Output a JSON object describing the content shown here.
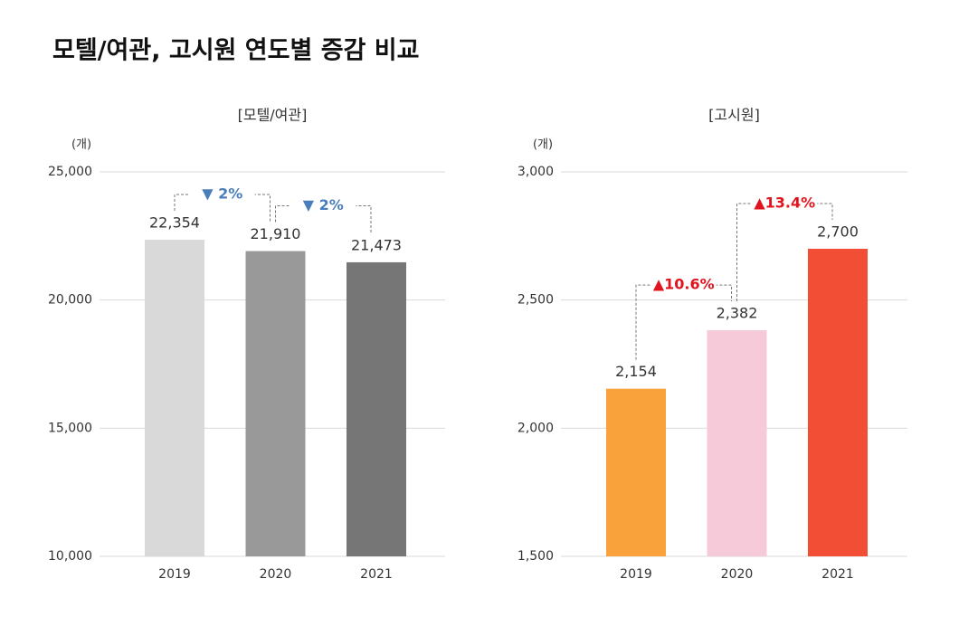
{
  "title": "모텔/여관, 고시원 연도별 증감 비교",
  "chart_data": [
    {
      "type": "bar",
      "title": "[모텔/여관]",
      "y_label": "(개)",
      "categories": [
        "2019",
        "2020",
        "2021"
      ],
      "values": [
        22354,
        21910,
        21473
      ],
      "value_labels": [
        "22,354",
        "21,910",
        "21,473"
      ],
      "colors": [
        "#d9d9d9",
        "#999999",
        "#767676"
      ],
      "ylim": [
        10000,
        25000
      ],
      "yticks": [
        {
          "value": 10000,
          "label": "10,000"
        },
        {
          "value": 15000,
          "label": "15,000"
        },
        {
          "value": 20000,
          "label": "20,000"
        },
        {
          "value": 25000,
          "label": "25,000"
        }
      ],
      "grid": true,
      "annotations": [
        "▼ 2%",
        "▼ 2%"
      ],
      "annotation_color": "#4a7ebb"
    },
    {
      "type": "bar",
      "title": "[고시원]",
      "y_label": "(개)",
      "categories": [
        "2019",
        "2020",
        "2021"
      ],
      "values": [
        2154,
        2382,
        2700
      ],
      "value_labels": [
        "2,154",
        "2,382",
        "2,700"
      ],
      "colors": [
        "#f9a23b",
        "#f6cad9",
        "#f24e36"
      ],
      "ylim": [
        1500,
        3000
      ],
      "yticks": [
        {
          "value": 1500,
          "label": "1,500"
        },
        {
          "value": 2000,
          "label": "2,000"
        },
        {
          "value": 2500,
          "label": "2,500"
        },
        {
          "value": 3000,
          "label": "3,000"
        }
      ],
      "grid": true,
      "annotations": [
        "▲10.6%",
        "▲13.4%"
      ],
      "annotation_color": "#e0141e"
    }
  ]
}
